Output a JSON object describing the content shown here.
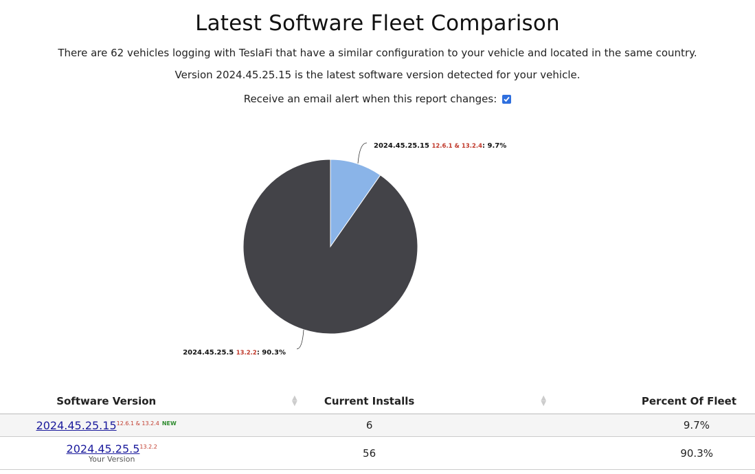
{
  "header": {
    "title": "Latest Software Fleet Comparison",
    "line1": "There are 62 vehicles logging with TeslaFi that have a similar configuration to your vehicle and located in the same country.",
    "line2": "Version 2024.45.25.15 is the latest software version detected for your vehicle.",
    "alert_label": "Receive an email alert when this report changes:",
    "alert_checked": true
  },
  "chart_data": {
    "type": "pie",
    "slices": [
      {
        "label": "2024.45.25.15",
        "sub": "12.6.1 & 13.2.4",
        "value": 9.7,
        "value_label": "9.7%",
        "color": "#8ab4e8"
      },
      {
        "label": "2024.45.25.5",
        "sub": "13.2.2",
        "value": 90.3,
        "value_label": "90.3%",
        "color": "#434348"
      }
    ]
  },
  "table": {
    "columns": [
      "Software Version",
      "Current Installs",
      "Percent Of Fleet"
    ],
    "rows": [
      {
        "version": "2024.45.25.15",
        "sub": "12.6.1 & 13.2.4",
        "badge": "NEW",
        "note": "",
        "installs": "6",
        "percent": "9.7%"
      },
      {
        "version": "2024.45.25.5",
        "sub": "13.2.2",
        "badge": "",
        "note": "Your Version",
        "installs": "56",
        "percent": "90.3%"
      }
    ]
  },
  "icons": {
    "sort": "sort-arrows-icon",
    "checkbox": "check-icon"
  }
}
